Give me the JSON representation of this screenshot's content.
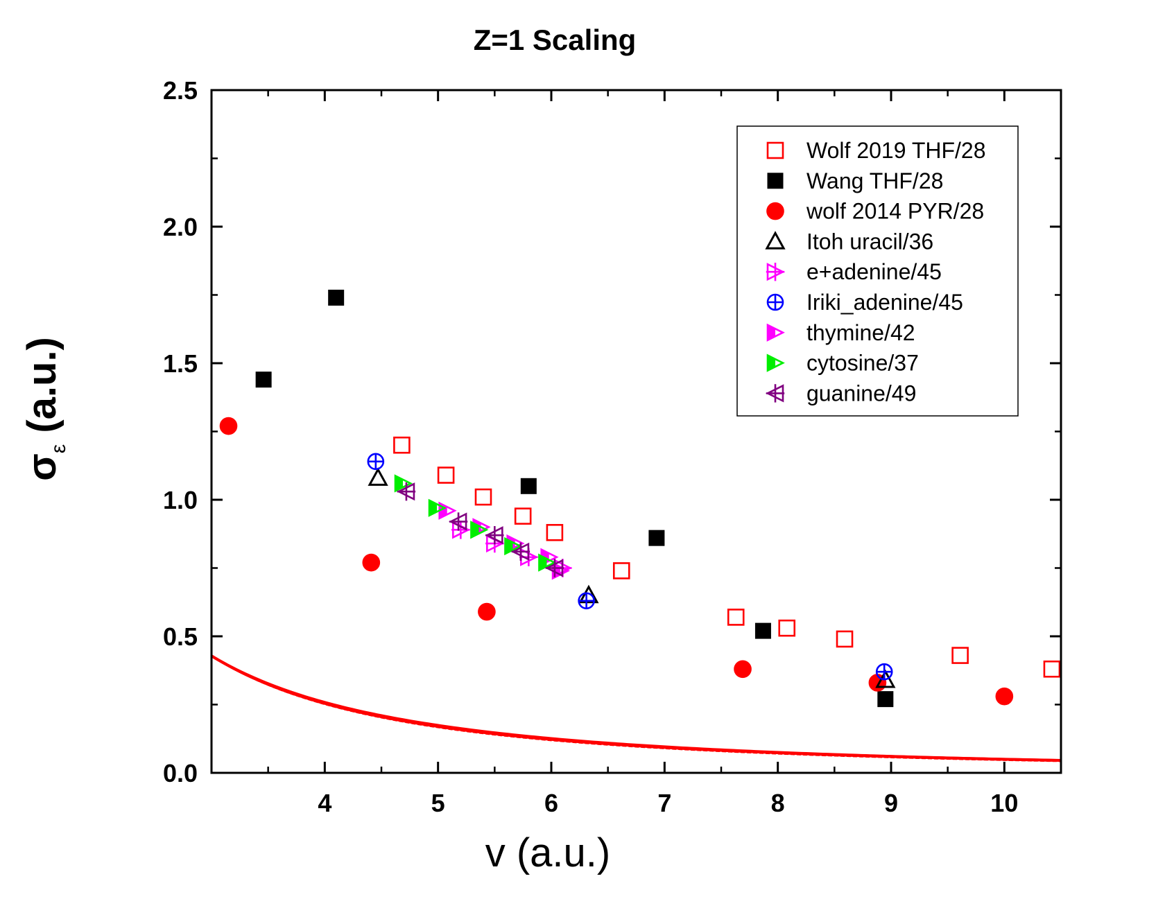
{
  "chart_data": {
    "type": "scatter",
    "title": "Z=1  Scaling",
    "xlabel": "v (a.u.)",
    "ylabel_main": "σ",
    "ylabel_sub": "ε",
    "ylabel_unit": "(a.u.)",
    "xlim": [
      3.0,
      10.5
    ],
    "ylim": [
      0.0,
      2.5
    ],
    "x_ticks": [
      4,
      5,
      6,
      7,
      8,
      9,
      10
    ],
    "y_ticks": [
      "0.0",
      "0.5",
      "1.0",
      "1.5",
      "2.0",
      "2.5"
    ],
    "grid": false,
    "legend_position": "top-right",
    "fit_curves": [
      {
        "color": "#ff0000",
        "k": 2.95,
        "p": 1.75
      },
      {
        "color": "#ff0000",
        "k": 3.0,
        "p": 1.77
      },
      {
        "color": "#ff0000",
        "k": 3.06,
        "p": 1.79
      },
      {
        "color": "#ff0000",
        "k": 3.12,
        "p": 1.81
      },
      {
        "color": "#ff0000",
        "k": 3.18,
        "p": 1.83
      },
      {
        "color": "#ff0000",
        "k": 3.26,
        "p": 1.85
      }
    ],
    "series": [
      {
        "name": "Wolf 2019 THF/28",
        "marker": "open-square",
        "color": "#ff0000",
        "points": [
          [
            4.68,
            1.2
          ],
          [
            5.07,
            1.09
          ],
          [
            5.4,
            1.01
          ],
          [
            5.75,
            0.94
          ],
          [
            6.03,
            0.88
          ],
          [
            6.62,
            0.74
          ],
          [
            7.63,
            0.57
          ],
          [
            8.08,
            0.53
          ],
          [
            8.59,
            0.49
          ],
          [
            9.61,
            0.43
          ],
          [
            10.42,
            0.38
          ]
        ]
      },
      {
        "name": "Wang THF/28",
        "marker": "filled-square",
        "color": "#000000",
        "points": [
          [
            3.46,
            1.44
          ],
          [
            4.1,
            1.74
          ],
          [
            5.8,
            1.05
          ],
          [
            6.93,
            0.86
          ],
          [
            7.87,
            0.52
          ],
          [
            8.95,
            0.27
          ]
        ]
      },
      {
        "name": "wolf 2014 PYR/28",
        "marker": "filled-circle",
        "color": "#ff0000",
        "points": [
          [
            3.15,
            1.27
          ],
          [
            4.41,
            0.77
          ],
          [
            5.43,
            0.59
          ],
          [
            7.69,
            0.38
          ],
          [
            8.88,
            0.33
          ],
          [
            10.0,
            0.28
          ]
        ]
      },
      {
        "name": "Itoh uracil/36",
        "marker": "open-triangle",
        "color": "#000000",
        "points": [
          [
            4.47,
            1.08
          ],
          [
            6.33,
            0.65
          ],
          [
            8.95,
            0.34
          ]
        ]
      },
      {
        "name": "e+adenine/45",
        "marker": "cross-triangle-right",
        "color": "#ff00ff",
        "points": [
          [
            5.2,
            0.89
          ],
          [
            5.5,
            0.84
          ],
          [
            5.8,
            0.79
          ],
          [
            6.1,
            0.75
          ]
        ]
      },
      {
        "name": "Iriki_adenine/45",
        "marker": "cross-circle",
        "color": "#0000ff",
        "points": [
          [
            4.45,
            1.14
          ],
          [
            6.31,
            0.63
          ],
          [
            8.94,
            0.37
          ]
        ]
      },
      {
        "name": "thymine/42",
        "marker": "half-triangle-right",
        "color": "#ff00ff",
        "points": [
          [
            5.08,
            0.96
          ],
          [
            5.38,
            0.9
          ],
          [
            5.68,
            0.84
          ],
          [
            5.98,
            0.79
          ],
          [
            6.08,
            0.74
          ]
        ]
      },
      {
        "name": "cytosine/37",
        "marker": "half-triangle-right",
        "color": "#00ee00",
        "points": [
          [
            4.69,
            1.06
          ],
          [
            4.99,
            0.97
          ],
          [
            5.36,
            0.89
          ],
          [
            5.66,
            0.83
          ],
          [
            5.96,
            0.77
          ]
        ]
      },
      {
        "name": "guanine/49",
        "marker": "cross-triangle-left",
        "color": "#800080",
        "points": [
          [
            4.72,
            1.03
          ],
          [
            5.18,
            0.92
          ],
          [
            5.5,
            0.87
          ],
          [
            5.73,
            0.81
          ],
          [
            6.03,
            0.75
          ]
        ]
      }
    ]
  }
}
